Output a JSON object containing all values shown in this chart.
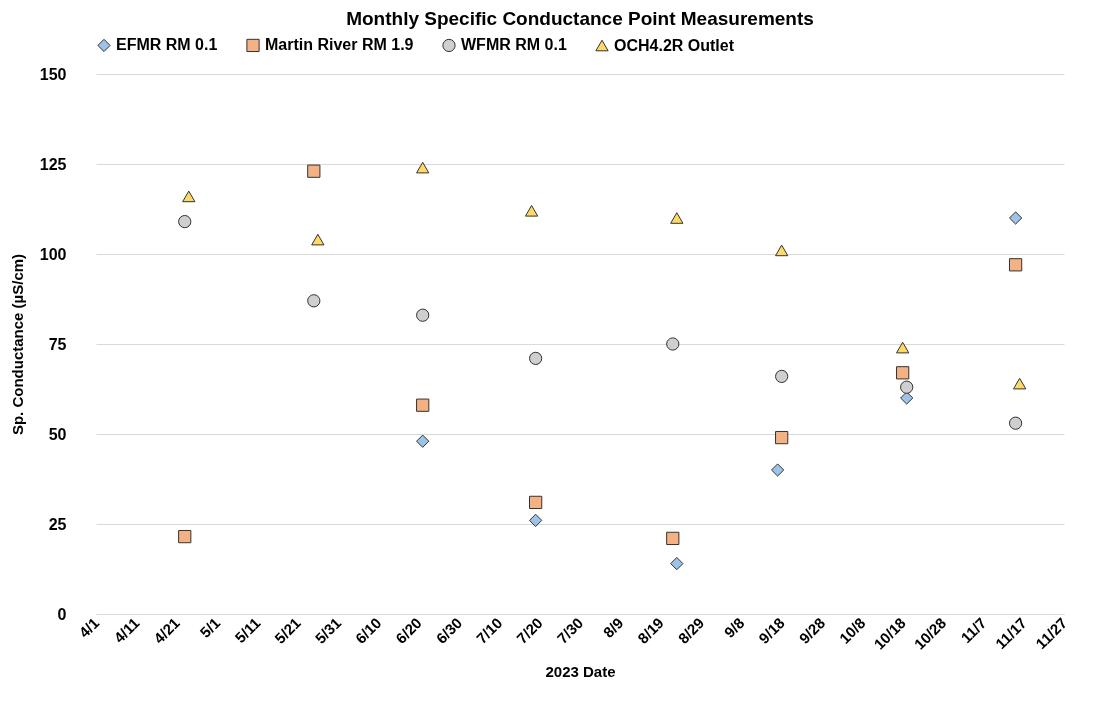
{
  "chart_data": {
    "type": "scatter",
    "title": "Monthly Specific Conductance Point Measurements",
    "xlabel": "2023 Date",
    "ylabel": "Sp. Conductance (µS/cm)",
    "legend": "top",
    "grid": "y",
    "xlim": [
      "2023-04-01",
      "2023-11-27"
    ],
    "xticks": [
      {
        "value": "2023-04-01",
        "label": "4/1"
      },
      {
        "value": "2023-04-11",
        "label": "4/11"
      },
      {
        "value": "2023-04-21",
        "label": "4/21"
      },
      {
        "value": "2023-05-01",
        "label": "5/1"
      },
      {
        "value": "2023-05-11",
        "label": "5/11"
      },
      {
        "value": "2023-05-21",
        "label": "5/21"
      },
      {
        "value": "2023-05-31",
        "label": "5/31"
      },
      {
        "value": "2023-06-10",
        "label": "6/10"
      },
      {
        "value": "2023-06-20",
        "label": "6/20"
      },
      {
        "value": "2023-06-30",
        "label": "6/30"
      },
      {
        "value": "2023-07-10",
        "label": "7/10"
      },
      {
        "value": "2023-07-20",
        "label": "7/20"
      },
      {
        "value": "2023-07-30",
        "label": "7/30"
      },
      {
        "value": "2023-08-09",
        "label": "8/9"
      },
      {
        "value": "2023-08-19",
        "label": "8/19"
      },
      {
        "value": "2023-08-29",
        "label": "8/29"
      },
      {
        "value": "2023-09-08",
        "label": "9/8"
      },
      {
        "value": "2023-09-18",
        "label": "9/18"
      },
      {
        "value": "2023-09-28",
        "label": "9/28"
      },
      {
        "value": "2023-10-08",
        "label": "10/8"
      },
      {
        "value": "2023-10-18",
        "label": "10/18"
      },
      {
        "value": "2023-10-28",
        "label": "10/28"
      },
      {
        "value": "2023-11-07",
        "label": "11/7"
      },
      {
        "value": "2023-11-17",
        "label": "11/17"
      },
      {
        "value": "2023-11-27",
        "label": "11/27"
      }
    ],
    "ylim": [
      0,
      150
    ],
    "yticks": [
      0,
      25,
      50,
      75,
      100,
      125,
      150
    ],
    "series": [
      {
        "name": "EFMR RM 0.1",
        "color": "#9dc3e6",
        "marker": "diamond",
        "x": [
          "2023-06-21",
          "2023-07-19",
          "2023-08-23",
          "2023-09-17",
          "2023-10-19",
          "2023-11-15"
        ],
        "values": [
          48,
          26,
          14,
          40,
          60,
          110
        ]
      },
      {
        "name": "Martin River RM 1.9",
        "color": "#f4b183",
        "marker": "square",
        "x": [
          "2023-04-23",
          "2023-05-25",
          "2023-06-21",
          "2023-07-19",
          "2023-08-22",
          "2023-09-18",
          "2023-10-18",
          "2023-11-15"
        ],
        "values": [
          21.5,
          123,
          58,
          31,
          21,
          49,
          67,
          97
        ]
      },
      {
        "name": "WFMR RM 0.1",
        "color": "#d0cece",
        "marker": "circle",
        "x": [
          "2023-04-23",
          "2023-05-25",
          "2023-06-21",
          "2023-07-19",
          "2023-08-22",
          "2023-09-18",
          "2023-10-19",
          "2023-11-15"
        ],
        "values": [
          109,
          87,
          83,
          71,
          75,
          66,
          63,
          53
        ]
      },
      {
        "name": "OCH4.2R Outlet",
        "color": "#ffd966",
        "marker": "triangle",
        "x": [
          "2023-04-24",
          "2023-05-26",
          "2023-06-21",
          "2023-07-18",
          "2023-08-23",
          "2023-09-18",
          "2023-10-18",
          "2023-11-16"
        ],
        "values": [
          116,
          104,
          124,
          112,
          110,
          101,
          74,
          64
        ]
      }
    ]
  }
}
